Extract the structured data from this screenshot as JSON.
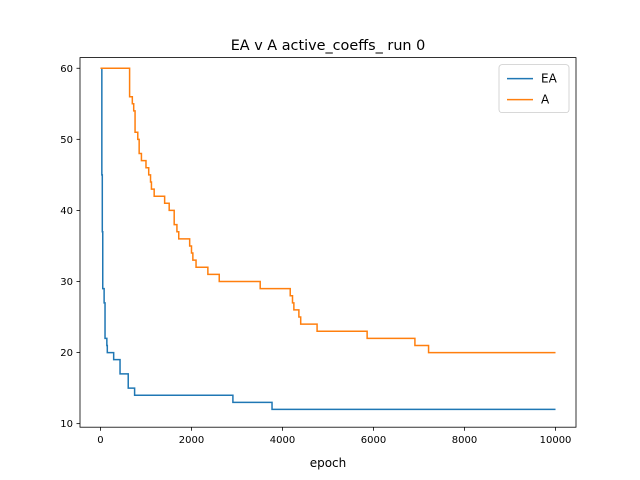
{
  "chart_data": {
    "type": "line",
    "title": "EA v A active_coeffs_ run 0",
    "xlabel": "epoch",
    "ylabel": "",
    "xlim": [
      -450,
      10450
    ],
    "ylim": [
      9.5,
      61.5
    ],
    "xticks": [
      0,
      2000,
      4000,
      6000,
      8000,
      10000
    ],
    "xtick_labels": [
      "0",
      "2000",
      "4000",
      "6000",
      "8000",
      "10000"
    ],
    "yticks": [
      10,
      20,
      30,
      40,
      50,
      60
    ],
    "ytick_labels": [
      "10",
      "20",
      "30",
      "40",
      "50",
      "60"
    ],
    "grid": false,
    "legend_position": "top-right",
    "series": [
      {
        "name": "EA",
        "color": "#1f77b4",
        "step": true,
        "points": [
          [
            0,
            60
          ],
          [
            20,
            60
          ],
          [
            30,
            45
          ],
          [
            40,
            37
          ],
          [
            50,
            29
          ],
          [
            70,
            29
          ],
          [
            80,
            27
          ],
          [
            100,
            22
          ],
          [
            130,
            22
          ],
          [
            140,
            21
          ],
          [
            150,
            20
          ],
          [
            280,
            20
          ],
          [
            290,
            19
          ],
          [
            420,
            19
          ],
          [
            430,
            17
          ],
          [
            600,
            17
          ],
          [
            610,
            15
          ],
          [
            740,
            15
          ],
          [
            750,
            14
          ],
          [
            2900,
            14
          ],
          [
            2910,
            13
          ],
          [
            3760,
            13
          ],
          [
            3770,
            12
          ],
          [
            10000,
            12
          ]
        ]
      },
      {
        "name": "A",
        "color": "#ff7f0e",
        "step": true,
        "points": [
          [
            0,
            60
          ],
          [
            630,
            60
          ],
          [
            640,
            56
          ],
          [
            700,
            55
          ],
          [
            730,
            54
          ],
          [
            760,
            51
          ],
          [
            820,
            50
          ],
          [
            850,
            48
          ],
          [
            900,
            47
          ],
          [
            980,
            47
          ],
          [
            1000,
            46
          ],
          [
            1050,
            46
          ],
          [
            1060,
            45
          ],
          [
            1100,
            44
          ],
          [
            1120,
            43
          ],
          [
            1180,
            42
          ],
          [
            1400,
            42
          ],
          [
            1410,
            41
          ],
          [
            1500,
            41
          ],
          [
            1510,
            40
          ],
          [
            1600,
            40
          ],
          [
            1620,
            38
          ],
          [
            1680,
            37
          ],
          [
            1720,
            36
          ],
          [
            1950,
            36
          ],
          [
            1960,
            35
          ],
          [
            2000,
            34
          ],
          [
            2030,
            33
          ],
          [
            2090,
            33
          ],
          [
            2100,
            32
          ],
          [
            2350,
            32
          ],
          [
            2360,
            31
          ],
          [
            2600,
            31
          ],
          [
            2610,
            30
          ],
          [
            3500,
            30
          ],
          [
            3510,
            29
          ],
          [
            4150,
            29
          ],
          [
            4170,
            28
          ],
          [
            4220,
            27
          ],
          [
            4250,
            26
          ],
          [
            4350,
            26
          ],
          [
            4360,
            25
          ],
          [
            4400,
            24
          ],
          [
            4750,
            24
          ],
          [
            4760,
            23
          ],
          [
            5850,
            23
          ],
          [
            5860,
            22
          ],
          [
            6900,
            22
          ],
          [
            6910,
            21
          ],
          [
            7200,
            21
          ],
          [
            7210,
            20
          ],
          [
            10000,
            20
          ]
        ]
      }
    ]
  }
}
